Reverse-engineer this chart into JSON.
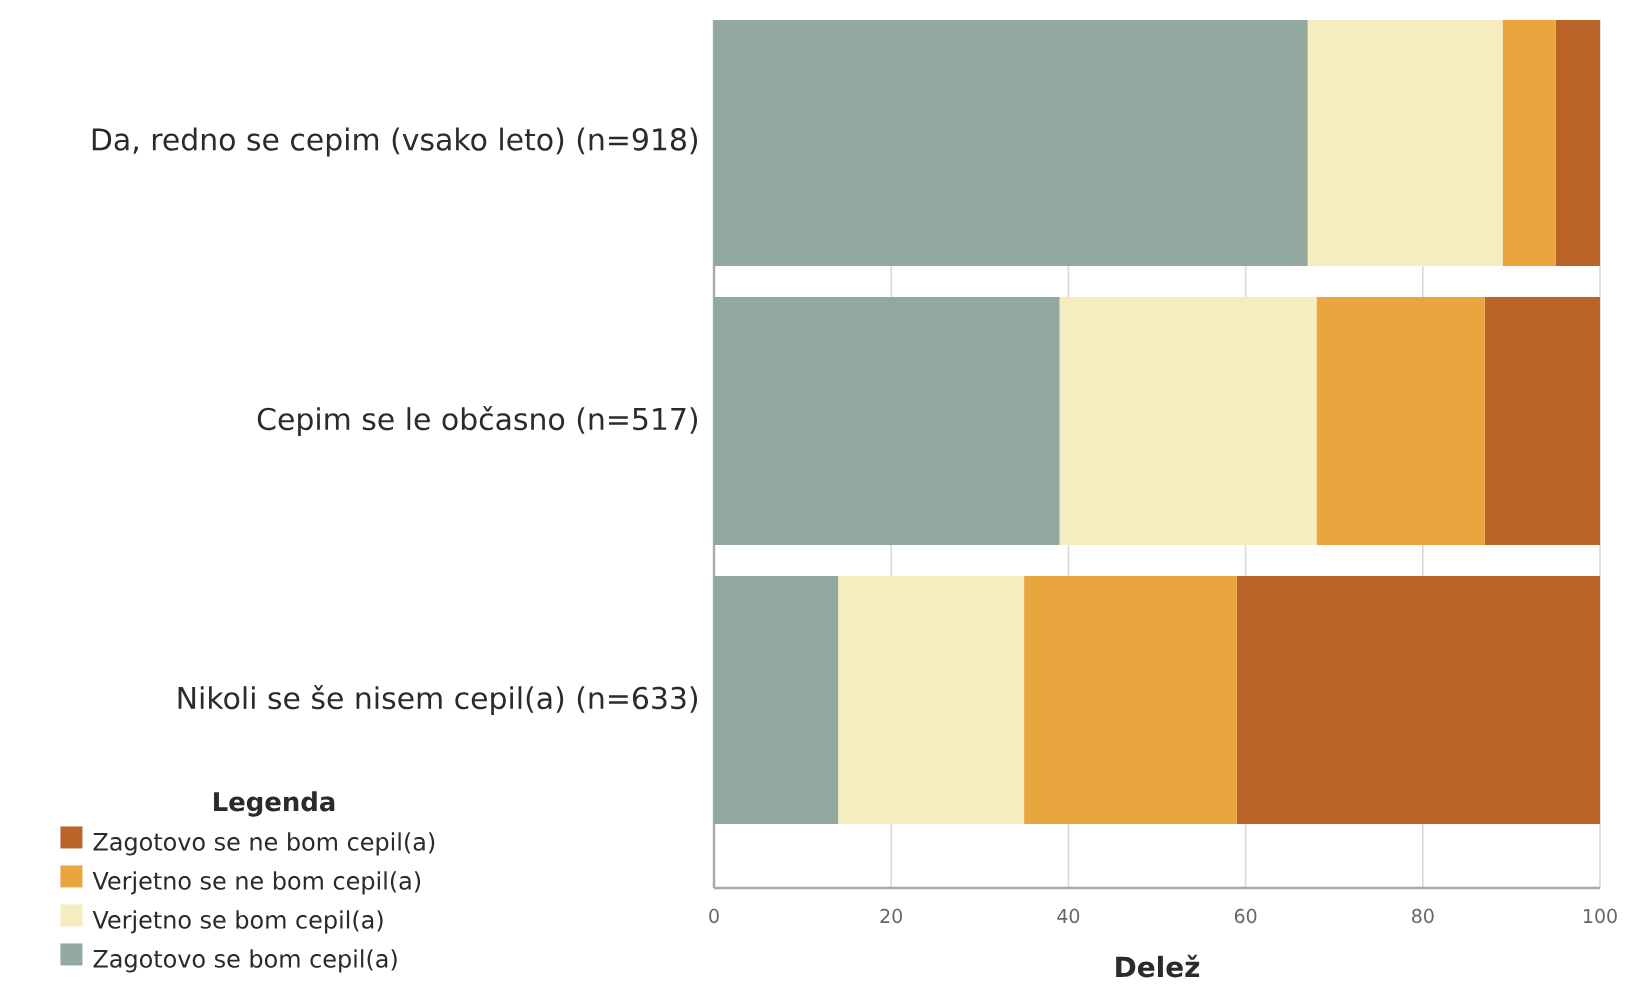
{
  "chart_data": {
    "type": "bar",
    "orientation": "horizontal",
    "stacked": true,
    "xlabel": "Delež",
    "legend_title": "Legenda",
    "categories": [
      "Da, redno se cepim (vsako leto) (n=918)",
      "Cepim se le občasno (n=517)",
      "Nikoli se še nisem cepil(a) (n=633)"
    ],
    "series": [
      {
        "name": "Zagotovo se bom cepil(a)",
        "color": "#93a89f",
        "values": [
          67,
          39,
          14
        ]
      },
      {
        "name": "Verjetno se bom cepil(a)",
        "color": "#f5ecc0",
        "values": [
          22,
          29,
          21
        ]
      },
      {
        "name": "Verjetno se ne bom cepil(a)",
        "color": "#e9a63f",
        "values": [
          6,
          19,
          24
        ]
      },
      {
        "name": "Zagotovo se ne bom cepil(a)",
        "color": "#bb6429",
        "values": [
          5,
          13,
          41
        ]
      }
    ],
    "xlim": [
      0,
      100
    ],
    "xticks": [
      0,
      20,
      40,
      60,
      80,
      100
    ],
    "grid": "x",
    "legend": "bottom left"
  }
}
